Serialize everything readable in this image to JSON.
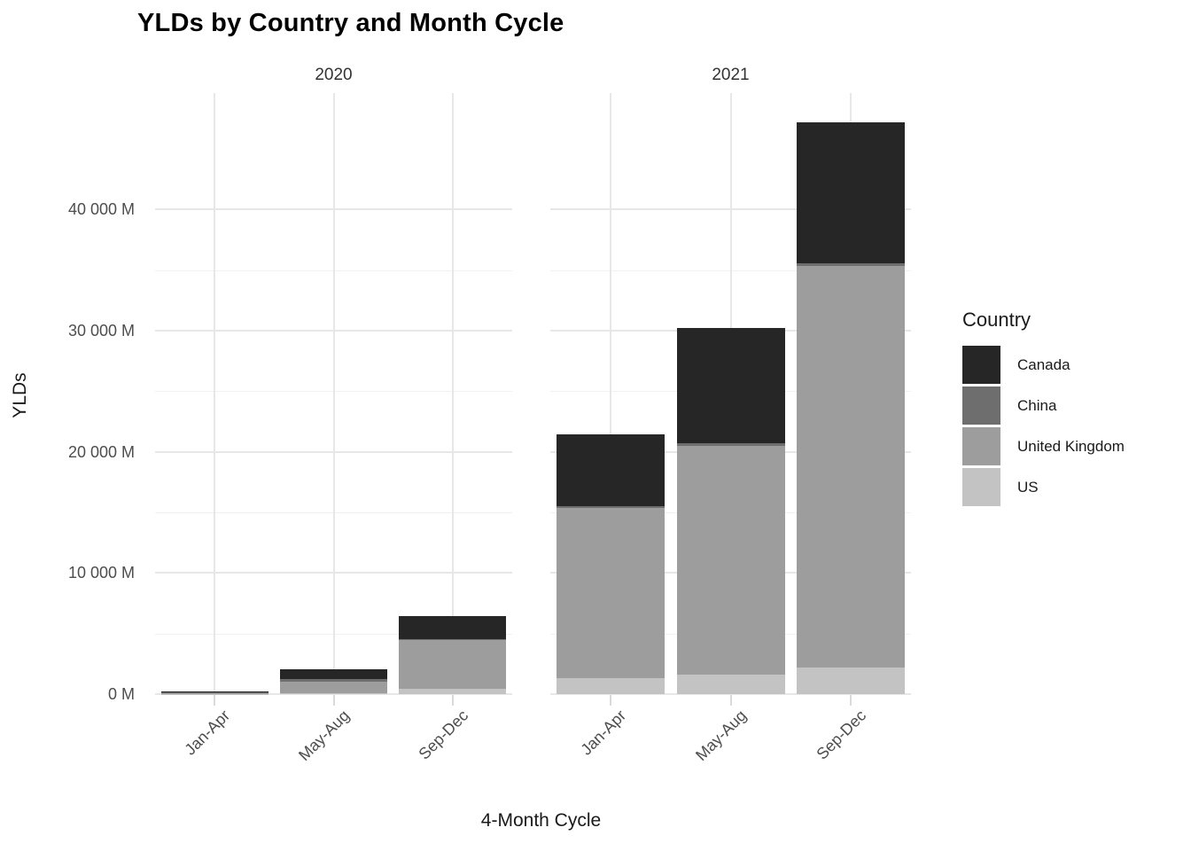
{
  "title": "YLDs by Country and Month Cycle",
  "axes": {
    "x_title": "4-Month Cycle",
    "y_title": "YLDs"
  },
  "legend": {
    "title": "Country",
    "items": [
      {
        "label": "Canada",
        "color": "#262626"
      },
      {
        "label": "China",
        "color": "#6e6e6e"
      },
      {
        "label": "United Kingdom",
        "color": "#9d9d9d"
      },
      {
        "label": "US",
        "color": "#c3c3c3"
      }
    ]
  },
  "chart_data": {
    "type": "bar",
    "stacked": true,
    "stack_order_bottom_to_top": [
      "US",
      "United Kingdom",
      "China",
      "Canada"
    ],
    "title": "YLDs by Country and Month Cycle",
    "xlabel": "4-Month Cycle",
    "ylabel": "YLDs",
    "units": "M",
    "ylim": [
      0,
      49600
    ],
    "grid": true,
    "minor_step": 5000,
    "legend_position": "right",
    "categories": [
      "Jan-Apr",
      "May-Aug",
      "Sep-Dec"
    ],
    "facets": [
      {
        "label": "2020",
        "series": [
          {
            "name": "Canada",
            "color": "#262626",
            "values": [
              100,
              790,
              1900
            ]
          },
          {
            "name": "China",
            "color": "#6e6e6e",
            "values": [
              20,
              200,
              130
            ]
          },
          {
            "name": "United Kingdom",
            "color": "#9d9d9d",
            "values": [
              90,
              920,
              3980
            ]
          },
          {
            "name": "US",
            "color": "#c3c3c3",
            "values": [
              20,
              110,
              460
            ]
          }
        ],
        "totals": [
          230,
          2020,
          6470
        ]
      },
      {
        "label": "2021",
        "series": [
          {
            "name": "Canada",
            "color": "#262626",
            "values": [
              5990,
              9520,
              11630
            ]
          },
          {
            "name": "China",
            "color": "#6e6e6e",
            "values": [
              110,
              220,
              220
            ]
          },
          {
            "name": "United Kingdom",
            "color": "#9d9d9d",
            "values": [
              14050,
              18870,
              33110
            ]
          },
          {
            "name": "US",
            "color": "#c3c3c3",
            "values": [
              1320,
              1590,
              2220
            ]
          }
        ],
        "totals": [
          21470,
          30200,
          47180
        ]
      }
    ],
    "yticks": [
      {
        "value": 0,
        "label": "0 M"
      },
      {
        "value": 10000,
        "label": "10 000 M"
      },
      {
        "value": 20000,
        "label": "20 000 M"
      },
      {
        "value": 30000,
        "label": "30 000 M"
      },
      {
        "value": 40000,
        "label": "40 000 M"
      }
    ]
  }
}
